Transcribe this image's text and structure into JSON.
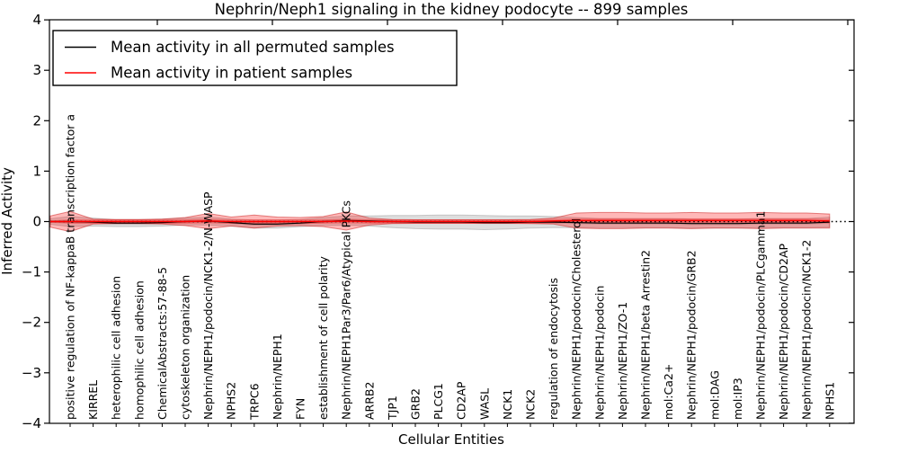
{
  "chart_data": {
    "type": "line",
    "title": "Nephrin/Neph1 signaling in the kidney podocyte -- 899 samples",
    "xlabel": "Cellular Entities",
    "ylabel": "Inferred Activity",
    "ylim": [
      -4,
      4
    ],
    "yticks": [
      4,
      3,
      2,
      1,
      0,
      -1,
      -2,
      -3,
      -4
    ],
    "grid": false,
    "legend_position": "upper left",
    "zero_line": {
      "value": 0,
      "style": "dotted",
      "color": "#000000"
    },
    "categories": [
      "positive regulation of NF-kappaB transcription factor a",
      "KIRREL",
      "heterophilic cell adhesion",
      "homophilic cell adhesion",
      "ChemicalAbstracts:57-88-5",
      "cytoskeleton organization",
      "Nephrin/NEPH1/podocin/NCK1-2/N-WASP",
      "NPHS2",
      "TRPC6",
      "Nephrin/NEPH1",
      "FYN",
      "establishment of cell polarity",
      "Nephrin/NEPH1Par3/Par6/Atypical PKCs",
      "ARRB2",
      "TJP1",
      "GRB2",
      "PLCG1",
      "CD2AP",
      "WASL",
      "NCK1",
      "NCK2",
      "regulation of endocytosis",
      "Nephrin/NEPH1/podocin/Cholesterol",
      "Nephrin/NEPH1/podocin",
      "Nephrin/NEPH1/ZO-1",
      "Nephrin/NEPH1/beta Arrestin2",
      "mol:Ca2+",
      "Nephrin/NEPH1/podocin/GRB2",
      "mol:DAG",
      "mol:IP3",
      "Nephrin/NEPH1/podocin/PLCgamma1",
      "Nephrin/NEPH1/podocin/CD2AP",
      "Nephrin/NEPH1/podocin/NCK1-2",
      "NPHS1"
    ],
    "series": [
      {
        "name": "Mean activity in all permuted samples",
        "color": "#000000",
        "style": "solid",
        "values": [
          0.0,
          -0.01,
          -0.03,
          -0.03,
          -0.02,
          0.0,
          0.01,
          -0.02,
          -0.05,
          -0.05,
          -0.03,
          0.0,
          0.02,
          0.01,
          0.0,
          -0.01,
          -0.01,
          -0.01,
          -0.02,
          -0.02,
          -0.01,
          -0.01,
          -0.02,
          -0.03,
          -0.03,
          -0.03,
          -0.03,
          -0.04,
          -0.04,
          -0.04,
          -0.03,
          -0.03,
          -0.03,
          -0.01
        ]
      },
      {
        "name": "Mean activity in patient samples",
        "color": "#ff0000",
        "style": "solid",
        "values": [
          0.0,
          0.0,
          0.0,
          0.0,
          0.0,
          0.0,
          0.01,
          0.0,
          0.0,
          0.0,
          0.0,
          0.0,
          0.01,
          0.0,
          0.0,
          0.0,
          0.0,
          0.0,
          0.0,
          0.0,
          0.0,
          0.01,
          0.02,
          0.02,
          0.02,
          0.02,
          0.02,
          0.02,
          0.02,
          0.02,
          0.02,
          0.02,
          0.02,
          0.01
        ]
      }
    ],
    "bands": [
      {
        "name": "permuted samples activity range",
        "fill": "rgba(0,0,0,0.13)",
        "edge": "rgba(120,120,120,0.35)",
        "core_half_width": 0.03,
        "half_widths": [
          0.1,
          0.08,
          0.07,
          0.07,
          0.07,
          0.07,
          0.08,
          0.07,
          0.08,
          0.08,
          0.07,
          0.08,
          0.09,
          0.1,
          0.12,
          0.13,
          0.14,
          0.14,
          0.14,
          0.13,
          0.12,
          0.11,
          0.1,
          0.09,
          0.09,
          0.09,
          0.09,
          0.09,
          0.09,
          0.09,
          0.09,
          0.09,
          0.09,
          0.1
        ]
      },
      {
        "name": "patient samples activity range",
        "fill": "rgba(255,0,0,0.28)",
        "edge": "rgba(205,40,40,0.55)",
        "core_half_width": 0.045,
        "half_widths": [
          0.2,
          0.05,
          0.04,
          0.04,
          0.05,
          0.08,
          0.15,
          0.09,
          0.13,
          0.09,
          0.08,
          0.1,
          0.18,
          0.07,
          0.04,
          0.035,
          0.035,
          0.035,
          0.035,
          0.035,
          0.04,
          0.06,
          0.15,
          0.16,
          0.16,
          0.15,
          0.15,
          0.16,
          0.15,
          0.15,
          0.16,
          0.15,
          0.15,
          0.14
        ]
      }
    ]
  },
  "legend": {
    "items": [
      {
        "label": "Mean activity in all permuted samples",
        "color": "#000000"
      },
      {
        "label": "Mean activity in patient samples",
        "color": "#ff0000"
      }
    ]
  }
}
